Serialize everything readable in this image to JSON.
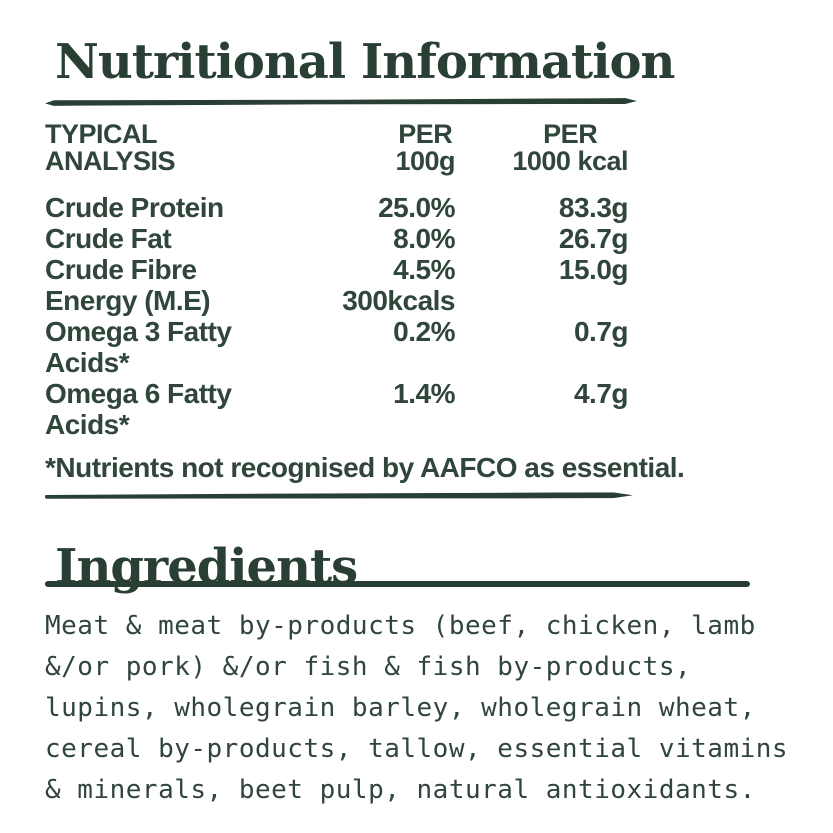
{
  "colors": {
    "ink": "#31463b",
    "ink_dark": "#2a3f34",
    "background": "#ffffff"
  },
  "nutrition": {
    "title": "Nutritional Information",
    "header": {
      "col1_line1": "TYPICAL",
      "col1_line2": "ANALYSIS",
      "col2_line1": "PER",
      "col2_line2": "100g",
      "col3_line1": "PER",
      "col3_line2": "1000 kcal"
    },
    "rows": [
      {
        "label": "Crude Protein",
        "per_100g": "25.0%",
        "per_1000kcal": "83.3g"
      },
      {
        "label": "Crude Fat",
        "per_100g": "8.0%",
        "per_1000kcal": "26.7g"
      },
      {
        "label": "Crude Fibre",
        "per_100g": "4.5%",
        "per_1000kcal": "15.0g"
      },
      {
        "label": "Energy (M.E)",
        "per_100g": "300kcals",
        "per_1000kcal": ""
      },
      {
        "label": "Omega 3 Fatty Acids*",
        "per_100g": "0.2%",
        "per_1000kcal": "0.7g"
      },
      {
        "label": "Omega 6 Fatty Acids*",
        "per_100g": "1.4%",
        "per_1000kcal": "4.7g"
      }
    ],
    "footnote": "*Nutrients not recognised by AAFCO as essential."
  },
  "ingredients": {
    "title": "Ingredients",
    "text": "Meat & meat by-products (beef, chicken, lamb &/or pork) &/or fish & fish by-products, lupins, wholegrain barley, wholegrain wheat, cereal by-products, tallow, essential vitamins & minerals, beet pulp, natural antioxidants."
  }
}
